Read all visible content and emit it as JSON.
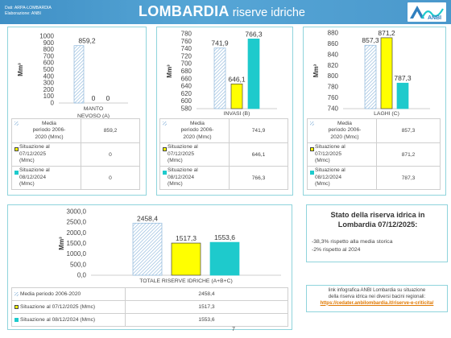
{
  "header": {
    "source_line1": "Dati: ARPA-LOMBARDIA",
    "source_line2": "Elaborazione: ANBI",
    "title_bold": "LOMBARDIA",
    "title_rest": " riserve idriche",
    "logo_text": "ANBI"
  },
  "colors": {
    "media": "#8fb8dc",
    "situazione_2025": "#ffff00",
    "situazione_2024": "#1ecacc",
    "border": "#8fd4dc"
  },
  "legend_labels": {
    "media": "Media periodo 2006-2020 (Mmc)",
    "sit2025": "Situazione al 07/12/2025 (Mmc)",
    "sit2024": "Situazione al 08/12/2024 (Mmc)"
  },
  "legend_labels_wrapped": {
    "media": [
      "Media",
      "periodo 2006-",
      "2020 (Mmc)"
    ],
    "sit2025": [
      "Situazione al",
      "07/12/2025",
      "(Mmc)"
    ],
    "sit2024": [
      "Situazione al",
      "08/12/2024",
      "(Mmc)"
    ]
  },
  "chart_data": [
    {
      "type": "bar",
      "categories": [
        "MANTO NEVOSO (A)"
      ],
      "series": [
        {
          "name": "Media periodo 2006-2020 (Mmc)",
          "values": [
            859.2
          ],
          "labels": [
            "859,2"
          ]
        },
        {
          "name": "Situazione al 07/12/2025 (Mmc)",
          "values": [
            0
          ],
          "labels": [
            "0"
          ]
        },
        {
          "name": "Situazione al 08/12/2024 (Mmc)",
          "values": [
            0
          ],
          "labels": [
            "0"
          ]
        }
      ],
      "ylabel": "Mm³",
      "ylim": [
        0,
        1000
      ],
      "yticks": [
        0,
        100,
        200,
        300,
        400,
        500,
        600,
        700,
        800,
        900,
        1000
      ],
      "ytick_labels": [
        "0",
        "100",
        "200",
        "300",
        "400",
        "500",
        "600",
        "700",
        "800",
        "900",
        "1000"
      ],
      "category_label_lines": [
        "MANTO",
        "NEVOSO (A)"
      ],
      "table_values": [
        "859,2",
        "0",
        "0"
      ]
    },
    {
      "type": "bar",
      "categories": [
        "INVASI (B)"
      ],
      "series": [
        {
          "name": "Media periodo 2006-2020 (Mmc)",
          "values": [
            741.9
          ],
          "labels": [
            "741,9"
          ]
        },
        {
          "name": "Situazione al 07/12/2025 (Mmc)",
          "values": [
            646.1
          ],
          "labels": [
            "646,1"
          ]
        },
        {
          "name": "Situazione al 08/12/2024 (Mmc)",
          "values": [
            766.3
          ],
          "labels": [
            "766,3"
          ]
        }
      ],
      "ylabel": "Mm³",
      "ylim": [
        580,
        780
      ],
      "yticks": [
        580,
        600,
        620,
        640,
        660,
        680,
        700,
        720,
        740,
        760,
        780
      ],
      "ytick_labels": [
        "580",
        "600",
        "620",
        "640",
        "660",
        "680",
        "700",
        "720",
        "740",
        "760",
        "780"
      ],
      "category_label_lines": [
        "INVASI (B)"
      ],
      "table_values": [
        "741,9",
        "646,1",
        "766,3"
      ]
    },
    {
      "type": "bar",
      "categories": [
        "LAGHI (C)"
      ],
      "series": [
        {
          "name": "Media periodo 2006-2020 (Mmc)",
          "values": [
            857.3
          ],
          "labels": [
            "857,3"
          ]
        },
        {
          "name": "Situazione al 07/12/2025 (Mmc)",
          "values": [
            871.2
          ],
          "labels": [
            "871,2"
          ]
        },
        {
          "name": "Situazione al 08/12/2024 (Mmc)",
          "values": [
            787.3
          ],
          "labels": [
            "787,3"
          ]
        }
      ],
      "ylabel": "Mm³",
      "ylim": [
        740,
        880
      ],
      "yticks": [
        740,
        760,
        780,
        800,
        820,
        840,
        860,
        880
      ],
      "ytick_labels": [
        "740",
        "760",
        "780",
        "800",
        "820",
        "840",
        "860",
        "880"
      ],
      "category_label_lines": [
        "LAGHI (C)"
      ],
      "table_values": [
        "857,3",
        "871,2",
        "787,3"
      ]
    },
    {
      "type": "bar",
      "categories": [
        "TOTALE RISERVE IDRICHE (A+B+C)"
      ],
      "series": [
        {
          "name": "Media periodo 2006-2020",
          "values": [
            2458.4
          ],
          "labels": [
            "2458,4"
          ]
        },
        {
          "name": "Situazione al 07/12/2025 (Mmc)",
          "values": [
            1517.3
          ],
          "labels": [
            "1517,3"
          ]
        },
        {
          "name": "Situazione al 08/12/2024 (Mmc)",
          "values": [
            1553.6
          ],
          "labels": [
            "1553,6"
          ]
        }
      ],
      "ylabel": "Mm³",
      "ylim": [
        0,
        3000
      ],
      "yticks": [
        0,
        500,
        1000,
        1500,
        2000,
        2500,
        3000
      ],
      "ytick_labels": [
        "0,0",
        "500,0",
        "1000,0",
        "1500,0",
        "2000,0",
        "2500,0",
        "3000,0"
      ],
      "category_label_lines": [
        "TOTALE RISERVE IDRICHE (A+B+C)"
      ],
      "table_labels": [
        "Media periodo 2006-2020",
        "Situazione al 07/12/2025 (Mmc)",
        "Situazione al 08/12/2024 (Mmc)"
      ],
      "table_values": [
        "2458,4",
        "1517,3",
        "1553,6"
      ]
    }
  ],
  "info": {
    "title_line1": "Stato della riserva idrica in",
    "title_line2": "Lombardia 07/12/2025:",
    "line1": "-38,3% rispetto alla media storica",
    "line2": "-2% rispetto al 2024"
  },
  "link": {
    "line1": "link infografica ANBI Lombardia su situazione",
    "line2": "della riserva idrica nei diversi bacini regionali:",
    "url": "https://cedater.anbilombardia.it/riserve-e-criticita/"
  },
  "page_number": "7"
}
